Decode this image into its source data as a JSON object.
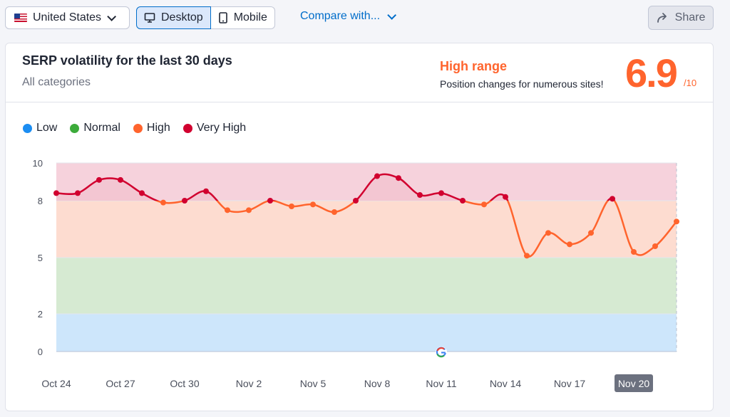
{
  "toolbar": {
    "country": "United States",
    "desktop": "Desktop",
    "mobile": "Mobile",
    "compare": "Compare with...",
    "share": "Share"
  },
  "card": {
    "title": "SERP volatility for the last 30 days",
    "subtitle": "All categories",
    "range_title": "High range",
    "range_sub": "Position changes for numerous sites!",
    "score": "6.9",
    "score_max": "/10"
  },
  "colors": {
    "low": "#1b8df2",
    "normal": "#3cab3a",
    "high": "#ff642d",
    "very_high": "#d1002f",
    "accent": "#006dca"
  },
  "chart_data": {
    "type": "line",
    "legend": [
      {
        "name": "Low",
        "color": "#1b8df2"
      },
      {
        "name": "Normal",
        "color": "#3cab3a"
      },
      {
        "name": "High",
        "color": "#ff642d"
      },
      {
        "name": "Very High",
        "color": "#d1002f"
      }
    ],
    "bands": [
      {
        "name": "Low",
        "from": 0,
        "to": 2
      },
      {
        "name": "Normal",
        "from": 2,
        "to": 5
      },
      {
        "name": "High",
        "from": 5,
        "to": 8
      },
      {
        "name": "Very High",
        "from": 8,
        "to": 10
      }
    ],
    "y_ticks": [
      "0",
      "2",
      "5",
      "8",
      "10"
    ],
    "ylim": [
      0,
      10
    ],
    "x_tick_labels": [
      "Oct 24",
      "Oct 27",
      "Oct 30",
      "Nov 2",
      "Nov 5",
      "Nov 8",
      "Nov 11",
      "Nov 14",
      "Nov 17",
      "Nov 20"
    ],
    "highlighted_x_label": "Nov 20",
    "series": [
      {
        "x": [
          "Oct 24",
          "Oct 25",
          "Oct 26",
          "Oct 27",
          "Oct 28",
          "Oct 29",
          "Oct 30",
          "Oct 31",
          "Nov 1",
          "Nov 2",
          "Nov 3",
          "Nov 4",
          "Nov 5",
          "Nov 6",
          "Nov 7",
          "Nov 8",
          "Nov 9",
          "Nov 10",
          "Nov 11",
          "Nov 12",
          "Nov 13",
          "Nov 14",
          "Nov 15",
          "Nov 16",
          "Nov 17",
          "Nov 18",
          "Nov 19",
          "Nov 20",
          "Nov 21",
          "Nov 22"
        ],
        "y": [
          8.4,
          8.4,
          9.1,
          9.1,
          8.4,
          7.9,
          8.0,
          8.5,
          7.5,
          7.5,
          8.0,
          7.7,
          7.8,
          7.4,
          8.0,
          9.3,
          9.2,
          8.3,
          8.4,
          8.0,
          7.8,
          8.2,
          5.1,
          6.3,
          5.7,
          6.3,
          8.1,
          5.3,
          5.6,
          6.9
        ]
      }
    ],
    "google_update_marker": "Nov 11"
  }
}
